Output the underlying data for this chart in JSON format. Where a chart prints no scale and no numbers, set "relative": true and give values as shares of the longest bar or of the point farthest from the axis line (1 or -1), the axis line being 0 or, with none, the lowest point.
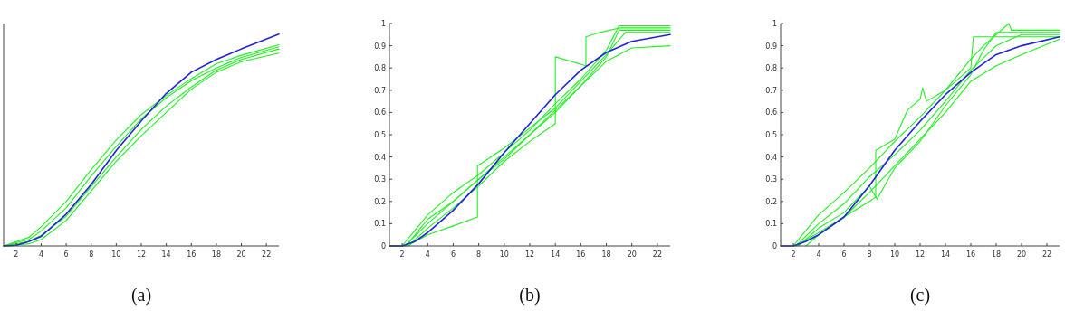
{
  "chart_data": [
    {
      "type": "line",
      "relative": true,
      "xlim": [
        1,
        23
      ],
      "xticks": [
        2,
        4,
        6,
        8,
        10,
        12,
        14,
        16,
        18,
        20,
        22
      ],
      "annotations": [
        "(a)"
      ],
      "series": [
        {
          "color": "#22ee22",
          "x": [
            1,
            3,
            4,
            6,
            8,
            10,
            12,
            14,
            16,
            18,
            20,
            23
          ],
          "values": [
            0,
            0.04,
            0.09,
            0.21,
            0.36,
            0.5,
            0.62,
            0.71,
            0.79,
            0.86,
            0.9,
            0.95
          ]
        },
        {
          "color": "#22ee22",
          "x": [
            1,
            3,
            4,
            6,
            8,
            10,
            12,
            14,
            16,
            18,
            20,
            23
          ],
          "values": [
            0,
            0.02,
            0.05,
            0.14,
            0.28,
            0.42,
            0.55,
            0.66,
            0.75,
            0.83,
            0.88,
            0.93
          ]
        },
        {
          "color": "#22ee22",
          "x": [
            1,
            3,
            4,
            6,
            8,
            10,
            12,
            14,
            16,
            18,
            20,
            23
          ],
          "values": [
            0,
            0.01,
            0.03,
            0.12,
            0.26,
            0.4,
            0.52,
            0.63,
            0.74,
            0.82,
            0.87,
            0.91
          ]
        },
        {
          "color": "#22ee22",
          "x": [
            1,
            3,
            4,
            6,
            8,
            10,
            12,
            14,
            16,
            18,
            20,
            23
          ],
          "values": [
            0,
            0.03,
            0.07,
            0.18,
            0.33,
            0.47,
            0.6,
            0.7,
            0.78,
            0.84,
            0.89,
            0.94
          ]
        },
        {
          "color": "#2222dd",
          "x": [
            1,
            2,
            3,
            4,
            6,
            8,
            10,
            12,
            14,
            16,
            18,
            20,
            23
          ],
          "values": [
            0,
            0.003,
            0.02,
            0.045,
            0.15,
            0.29,
            0.45,
            0.59,
            0.72,
            0.82,
            0.88,
            0.93,
            1
          ]
        }
      ]
    },
    {
      "type": "line",
      "xlim": [
        1,
        23
      ],
      "xticks": [
        2,
        4,
        6,
        8,
        10,
        12,
        14,
        16,
        18,
        20,
        22
      ],
      "ylim": [
        0,
        1
      ],
      "yticks": [
        0,
        0.1,
        0.2,
        0.3,
        0.4,
        0.5,
        0.6,
        0.7,
        0.8,
        0.9,
        1
      ],
      "annotations": [
        "(b)"
      ],
      "series": [
        {
          "color": "#22ee22",
          "x": [
            1,
            2.3,
            4,
            6,
            8,
            10,
            12,
            14,
            16,
            18,
            19,
            20,
            23
          ],
          "values": [
            0,
            0,
            0.12,
            0.2,
            0.3,
            0.4,
            0.5,
            0.6,
            0.72,
            0.85,
            0.97,
            0.97,
            0.97
          ]
        },
        {
          "color": "#22ee22",
          "x": [
            2.4,
            4,
            6,
            7.9,
            7.9,
            10,
            12,
            14,
            16,
            18,
            19.5,
            23
          ],
          "values": [
            0,
            0.05,
            0.09,
            0.13,
            0.36,
            0.44,
            0.53,
            0.62,
            0.74,
            0.86,
            0.96,
            0.96
          ]
        },
        {
          "color": "#22ee22",
          "x": [
            2.5,
            4,
            6,
            8,
            10,
            12,
            14,
            14,
            16.4,
            16.4,
            17.5,
            19,
            23
          ],
          "values": [
            0,
            0.08,
            0.17,
            0.27,
            0.38,
            0.47,
            0.55,
            0.85,
            0.81,
            0.94,
            0.96,
            0.98,
            0.98
          ]
        },
        {
          "color": "#22ee22",
          "x": [
            2.2,
            4,
            6,
            8,
            10,
            12,
            14,
            16,
            18,
            20,
            23
          ],
          "values": [
            0,
            0.1,
            0.2,
            0.3,
            0.39,
            0.5,
            0.61,
            0.72,
            0.83,
            0.89,
            0.9
          ]
        },
        {
          "color": "#22ee22",
          "x": [
            2,
            4,
            6,
            8,
            10,
            12,
            14,
            16,
            18,
            19,
            20,
            23
          ],
          "values": [
            0,
            0.14,
            0.24,
            0.32,
            0.42,
            0.52,
            0.64,
            0.75,
            0.88,
            0.99,
            0.99,
            0.99
          ]
        },
        {
          "color": "#2222dd",
          "x": [
            1,
            2,
            3,
            4,
            6,
            8,
            10,
            12,
            14,
            16,
            18,
            20,
            23
          ],
          "values": [
            0,
            0,
            0.02,
            0.06,
            0.16,
            0.28,
            0.42,
            0.55,
            0.68,
            0.79,
            0.87,
            0.92,
            0.95
          ]
        }
      ]
    },
    {
      "type": "line",
      "xlim": [
        1,
        23
      ],
      "xticks": [
        2,
        4,
        6,
        8,
        10,
        12,
        14,
        16,
        18,
        20,
        22
      ],
      "ylim": [
        0,
        1
      ],
      "yticks": [
        0,
        0.1,
        0.2,
        0.3,
        0.4,
        0.5,
        0.6,
        0.7,
        0.8,
        0.9,
        1
      ],
      "annotations": [
        "(c)"
      ],
      "series": [
        {
          "color": "#22ee22",
          "x": [
            2.2,
            4,
            6,
            8,
            8.5,
            8.5,
            10,
            11,
            12,
            12.2,
            12.5,
            14,
            16,
            16.2,
            23
          ],
          "values": [
            0,
            0.06,
            0.13,
            0.2,
            0.22,
            0.43,
            0.48,
            0.61,
            0.66,
            0.71,
            0.65,
            0.7,
            0.8,
            0.94,
            0.94
          ]
        },
        {
          "color": "#22ee22",
          "x": [
            2,
            4,
            6,
            8,
            10,
            12,
            14,
            16,
            17,
            19,
            19.2,
            23
          ],
          "values": [
            0,
            0.14,
            0.24,
            0.35,
            0.47,
            0.58,
            0.7,
            0.84,
            0.9,
            1,
            0.97,
            0.97
          ]
        },
        {
          "color": "#22ee22",
          "x": [
            3,
            4,
            6,
            8,
            10,
            12,
            14,
            16,
            18,
            20,
            23
          ],
          "values": [
            0,
            0.05,
            0.13,
            0.24,
            0.36,
            0.48,
            0.6,
            0.74,
            0.81,
            0.86,
            0.93
          ]
        },
        {
          "color": "#22ee22",
          "x": [
            2.4,
            4,
            6,
            8,
            8.6,
            10,
            12,
            14,
            16,
            17,
            18,
            23
          ],
          "values": [
            0,
            0.08,
            0.15,
            0.27,
            0.21,
            0.35,
            0.47,
            0.63,
            0.77,
            0.88,
            0.96,
            0.96
          ]
        },
        {
          "color": "#22ee22",
          "x": [
            2.2,
            4,
            6,
            8,
            10,
            12,
            14,
            16,
            18,
            20,
            23
          ],
          "values": [
            0,
            0.1,
            0.19,
            0.31,
            0.41,
            0.52,
            0.65,
            0.79,
            0.9,
            0.95,
            0.95
          ]
        },
        {
          "color": "#2222dd",
          "x": [
            1,
            2,
            3,
            4,
            6,
            8,
            10,
            12,
            14,
            16,
            18,
            20,
            23
          ],
          "values": [
            0,
            0,
            0.02,
            0.05,
            0.13,
            0.27,
            0.43,
            0.56,
            0.68,
            0.78,
            0.86,
            0.9,
            0.94
          ]
        }
      ]
    }
  ]
}
